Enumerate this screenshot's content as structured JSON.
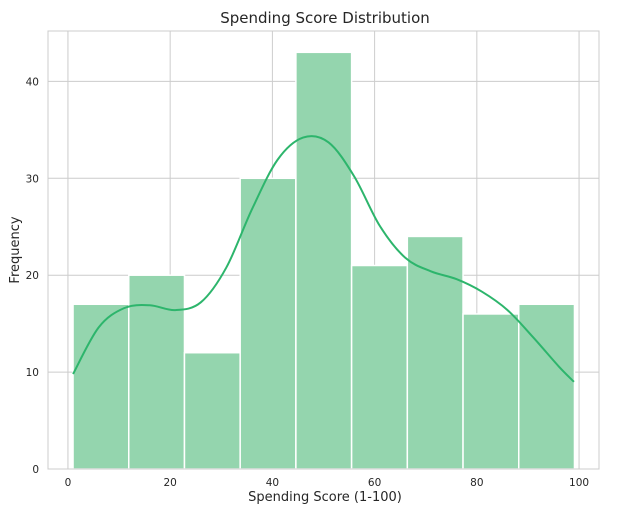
{
  "chart_data": {
    "type": "bar",
    "title": "Spending Score Distribution",
    "xlabel": "Spending Score (1-100)",
    "ylabel": "Frequency",
    "bins": [
      {
        "start": 1,
        "end": 11.9,
        "count": 17
      },
      {
        "start": 11.9,
        "end": 22.8,
        "count": 20
      },
      {
        "start": 22.8,
        "end": 33.7,
        "count": 12
      },
      {
        "start": 33.7,
        "end": 44.6,
        "count": 30
      },
      {
        "start": 44.6,
        "end": 55.5,
        "count": 43
      },
      {
        "start": 55.5,
        "end": 66.4,
        "count": 21
      },
      {
        "start": 66.4,
        "end": 77.3,
        "count": 24
      },
      {
        "start": 77.3,
        "end": 88.2,
        "count": 16
      },
      {
        "start": 88.2,
        "end": 99.1,
        "count": 17
      }
    ],
    "kde": {
      "x": [
        1,
        6,
        11,
        16,
        21,
        26,
        31,
        36,
        41,
        46,
        51,
        56,
        61,
        66,
        71,
        76,
        81,
        86,
        91,
        96,
        99
      ],
      "y": [
        9.8,
        14.6,
        16.6,
        16.9,
        16.4,
        17.2,
        20.8,
        26.8,
        31.9,
        34.2,
        33.7,
        30.2,
        25.1,
        21.8,
        20.4,
        19.6,
        18.3,
        16.4,
        13.6,
        10.6,
        9.0
      ]
    },
    "xlim": [
      -3.9,
      103.9
    ],
    "ylim": [
      0,
      45.2
    ],
    "xticks": [
      0,
      20,
      40,
      60,
      80,
      100
    ],
    "yticks": [
      0,
      10,
      20,
      30,
      40
    ],
    "grid": true,
    "bar_color": "#94d5ae",
    "bar_edge_color": "#ffffff",
    "line_color": "#2db56c",
    "grid_color": "#cccccc"
  }
}
